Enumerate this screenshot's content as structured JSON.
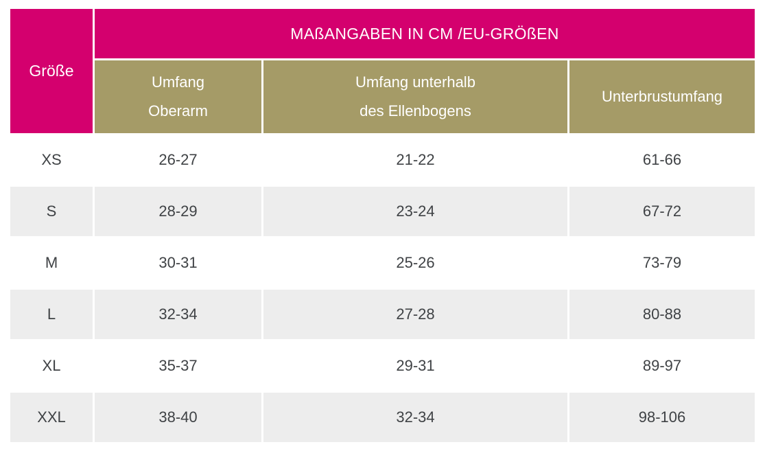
{
  "table": {
    "corner_header": "Größe",
    "banner_title": "MAßANGABEN IN CM /EU-GRÖßEN",
    "column_headers": [
      {
        "label": "Umfang Oberarm",
        "lines": [
          "Umfang",
          "Oberarm"
        ]
      },
      {
        "label": "Umfang unterhalb des Ellenbogens",
        "lines": [
          "Umfang unterhalb",
          "des Ellenbogens"
        ]
      },
      {
        "label": "Unterbrustumfang",
        "lines": [
          "Unterbrustumfang"
        ]
      }
    ],
    "rows": [
      {
        "size": "XS",
        "values": [
          "26-27",
          "21-22",
          "61-66"
        ]
      },
      {
        "size": "S",
        "values": [
          "28-29",
          "23-24",
          "67-72"
        ]
      },
      {
        "size": "M",
        "values": [
          "30-31",
          "25-26",
          "73-79"
        ]
      },
      {
        "size": "L",
        "values": [
          "32-34",
          "27-28",
          "80-88"
        ]
      },
      {
        "size": "XL",
        "values": [
          "35-37",
          "29-31",
          "89-97"
        ]
      },
      {
        "size": "XXL",
        "values": [
          "38-40",
          "32-34",
          "98-106"
        ]
      }
    ],
    "colors": {
      "header_magenta": "#D4006E",
      "header_olive": "#A59B67",
      "row_alt_gray": "#EDEDED",
      "header_text": "#FFFFFF",
      "data_text": "#3F4245"
    }
  }
}
